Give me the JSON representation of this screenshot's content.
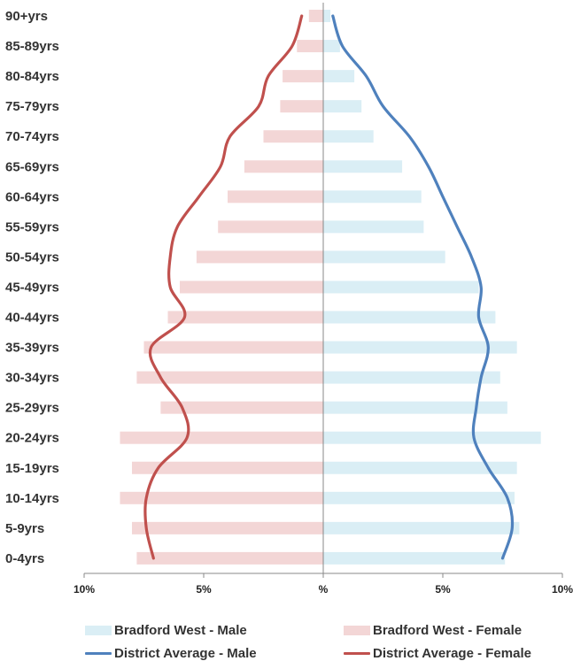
{
  "chart_data": {
    "type": "bar",
    "orientation": "horizontal-population-pyramid",
    "categories": [
      "90+yrs",
      "85-89yrs",
      "80-84yrs",
      "75-79yrs",
      "70-74yrs",
      "65-69yrs",
      "60-64yrs",
      "55-59yrs",
      "50-54yrs",
      "45-49yrs",
      "40-44yrs",
      "35-39yrs",
      "30-34yrs",
      "25-29yrs",
      "20-24yrs",
      "15-19yrs",
      "10-14yrs",
      "5-9yrs",
      "0-4yrs"
    ],
    "x_ticks": [
      "10%",
      "5%",
      "%",
      "5%",
      "10%"
    ],
    "xlim": [
      -10,
      10
    ],
    "grid": false,
    "legend_position": "bottom",
    "series": [
      {
        "name": "Bradford West - Male",
        "kind": "bar",
        "side": "right",
        "color": "#daeef5",
        "values": [
          0.3,
          0.7,
          1.3,
          1.6,
          2.1,
          3.3,
          4.1,
          4.2,
          5.1,
          6.5,
          7.2,
          8.1,
          7.4,
          7.7,
          9.1,
          8.1,
          8.0,
          8.2,
          7.6
        ]
      },
      {
        "name": "Bradford West - Female",
        "kind": "bar",
        "side": "left",
        "color": "#f3d6d6",
        "values": [
          0.6,
          1.1,
          1.7,
          1.8,
          2.5,
          3.3,
          4.0,
          4.4,
          5.3,
          6.0,
          6.5,
          7.5,
          7.8,
          6.8,
          8.5,
          8.0,
          8.5,
          8.0,
          7.8
        ]
      },
      {
        "name": "District Average - Male",
        "kind": "line",
        "side": "right",
        "color": "#4f81bd",
        "values": [
          0.4,
          0.8,
          1.8,
          2.5,
          3.6,
          4.4,
          5.0,
          5.6,
          6.2,
          6.6,
          6.5,
          6.9,
          6.6,
          6.4,
          6.3,
          6.9,
          7.7,
          7.9,
          7.5
        ]
      },
      {
        "name": "District Average - Female",
        "kind": "line",
        "side": "left",
        "color": "#c0504d",
        "values": [
          0.9,
          1.3,
          2.3,
          2.7,
          3.9,
          4.3,
          5.2,
          6.1,
          6.4,
          6.4,
          5.8,
          7.2,
          6.8,
          5.9,
          5.7,
          6.9,
          7.4,
          7.4,
          7.1
        ]
      }
    ]
  }
}
